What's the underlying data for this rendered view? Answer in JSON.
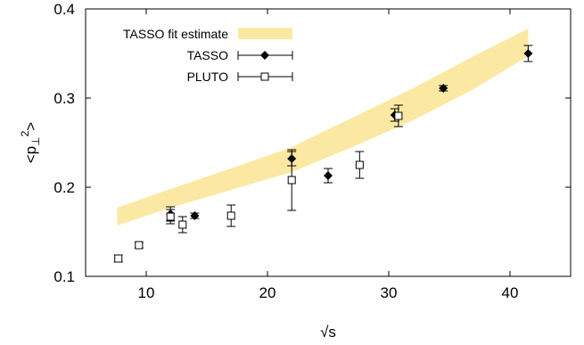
{
  "chart_data": {
    "type": "scatter",
    "xlabel": "√s",
    "ylabel": "<p⊥²>",
    "ylabel_parts": {
      "base": "<p",
      "sub": "⊥",
      "sup": "2",
      "close": ">"
    },
    "xlim": [
      5,
      45
    ],
    "ylim": [
      0.1,
      0.4
    ],
    "x_ticks": [
      10,
      20,
      30,
      40
    ],
    "y_ticks": [
      0.1,
      0.2,
      0.3,
      0.4
    ],
    "x_tick_labels": [
      "10",
      "20",
      "30",
      "40"
    ],
    "y_tick_labels": [
      "0.1",
      "0.2",
      "0.3",
      "0.4"
    ],
    "grid": false,
    "legend_position": "top-left",
    "band": {
      "name": "TASSO fit estimate",
      "color": "#fbe9a3",
      "x": [
        7.6,
        12,
        17,
        22,
        27,
        32,
        37,
        41.5
      ],
      "lower": [
        0.157,
        0.177,
        0.197,
        0.217,
        0.245,
        0.275,
        0.31,
        0.347
      ],
      "upper": [
        0.177,
        0.198,
        0.221,
        0.245,
        0.278,
        0.311,
        0.347,
        0.378
      ]
    },
    "series": [
      {
        "name": "TASSO",
        "marker": "filled-diamond",
        "points": [
          {
            "x": 12.0,
            "y": 0.17,
            "err": 0.008
          },
          {
            "x": 14.0,
            "y": 0.168,
            "err": 0.003
          },
          {
            "x": 22.0,
            "y": 0.232,
            "err": 0.008
          },
          {
            "x": 25.0,
            "y": 0.213,
            "err": 0.008
          },
          {
            "x": 30.5,
            "y": 0.281,
            "err": 0.007
          },
          {
            "x": 34.5,
            "y": 0.311,
            "err": 0.003
          },
          {
            "x": 41.5,
            "y": 0.35,
            "err": 0.009
          }
        ]
      },
      {
        "name": "PLUTO",
        "marker": "open-square",
        "points": [
          {
            "x": 7.7,
            "y": 0.12,
            "err": 0.004
          },
          {
            "x": 9.4,
            "y": 0.135,
            "err": 0.003
          },
          {
            "x": 12.0,
            "y": 0.167,
            "err": 0.008
          },
          {
            "x": 13.0,
            "y": 0.158,
            "err": 0.009
          },
          {
            "x": 17.0,
            "y": 0.168,
            "err": 0.012
          },
          {
            "x": 22.0,
            "y": 0.208,
            "err": 0.034
          },
          {
            "x": 27.6,
            "y": 0.225,
            "err": 0.015
          },
          {
            "x": 30.8,
            "y": 0.28,
            "err": 0.012
          }
        ]
      }
    ],
    "legend": {
      "band_label": "TASSO fit estimate",
      "tasso_label": "TASSO",
      "pluto_label": "PLUTO"
    }
  }
}
